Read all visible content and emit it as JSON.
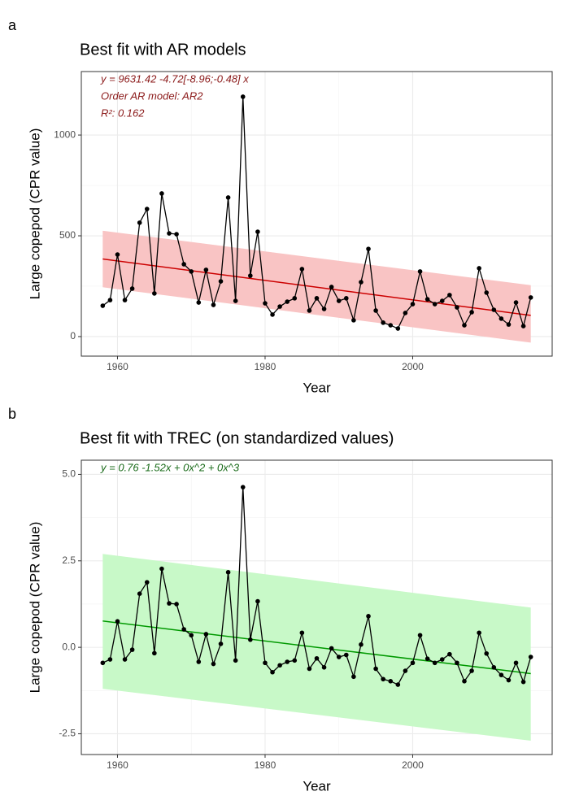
{
  "chart_data": [
    {
      "type": "line",
      "panel": "a",
      "title": "Best fit with AR models",
      "x_label": "Year",
      "y_label": "Large copepod (CPR value)",
      "annotations": [
        "y = 9631.42  -4.72[-8.96;-0.48] x",
        "Order AR model: AR2",
        "R²: 0.162"
      ],
      "annotation_color": "#8b1a1a",
      "xlim": [
        1955.1,
        2018.9
      ],
      "xticks": [
        1960,
        1980,
        2000
      ],
      "ylim": [
        -97,
        1315
      ],
      "yticks": [
        0,
        500,
        1000
      ],
      "grid": true,
      "minor_grid": true,
      "x": [
        1958,
        1959,
        1960,
        1961,
        1962,
        1963,
        1964,
        1965,
        1966,
        1967,
        1968,
        1969,
        1970,
        1971,
        1972,
        1973,
        1974,
        1975,
        1976,
        1977,
        1978,
        1979,
        1980,
        1981,
        1982,
        1983,
        1984,
        1985,
        1986,
        1987,
        1988,
        1989,
        1990,
        1991,
        1992,
        1993,
        1994,
        1995,
        1996,
        1997,
        1998,
        1999,
        2000,
        2001,
        2002,
        2003,
        2004,
        2005,
        2006,
        2007,
        2008,
        2009,
        2010,
        2011,
        2012,
        2013,
        2014,
        2015,
        2016
      ],
      "values": [
        153,
        181,
        407,
        181,
        238,
        565,
        633,
        214,
        710,
        512,
        508,
        359,
        323,
        169,
        331,
        157,
        274,
        690,
        177,
        1190,
        302,
        520,
        165,
        109,
        149,
        173,
        190,
        335,
        129,
        190,
        137,
        246,
        177,
        190,
        81,
        270,
        435,
        129,
        69,
        56,
        40,
        117,
        161,
        323,
        185,
        161,
        177,
        206,
        145,
        56,
        121,
        339,
        218,
        133,
        89,
        60,
        169,
        52,
        194
      ],
      "color": "#000000",
      "fit": {
        "x": [
          1958,
          2016
        ],
        "values": [
          385,
          105
        ],
        "color": "#cc0000"
      },
      "band": {
        "x": [
          1958,
          2016
        ],
        "lower": [
          245,
          -30
        ],
        "upper": [
          525,
          255
        ],
        "color": "#f9c4c4"
      }
    },
    {
      "type": "line",
      "panel": "b",
      "title": "Best fit with TREC (on standardized values)",
      "x_label": "Year",
      "y_label": "Large copepod (CPR value)",
      "annotations": [
        "y =  0.76  -1.52x  + 0x^2  + 0x^3"
      ],
      "annotation_color": "#1a6b1a",
      "xlim": [
        1955.1,
        2018.9
      ],
      "xticks": [
        1960,
        1980,
        2000
      ],
      "ylim": [
        -3.1,
        5.41
      ],
      "yticks": [
        {
          "value": 5,
          "label": "5.0"
        },
        2.5,
        {
          "value": 0,
          "label": "0.0"
        },
        -2.5
      ],
      "grid": true,
      "minor_grid": true,
      "x": [
        1958,
        1959,
        1960,
        1961,
        1962,
        1963,
        1964,
        1965,
        1966,
        1967,
        1968,
        1969,
        1970,
        1971,
        1972,
        1973,
        1974,
        1975,
        1976,
        1977,
        1978,
        1979,
        1980,
        1981,
        1982,
        1983,
        1984,
        1985,
        1986,
        1987,
        1988,
        1989,
        1990,
        1991,
        1992,
        1993,
        1994,
        1995,
        1996,
        1997,
        1998,
        1999,
        2000,
        2001,
        2002,
        2003,
        2004,
        2005,
        2006,
        2007,
        2008,
        2009,
        2010,
        2011,
        2012,
        2013,
        2014,
        2015,
        2016
      ],
      "values": [
        -0.45,
        -0.35,
        0.75,
        -0.35,
        -0.07,
        1.55,
        1.88,
        -0.17,
        2.27,
        1.27,
        1.25,
        0.52,
        0.35,
        -0.42,
        0.38,
        -0.48,
        0.1,
        2.17,
        -0.38,
        4.63,
        0.22,
        1.33,
        -0.45,
        -0.72,
        -0.52,
        -0.42,
        -0.38,
        0.42,
        -0.62,
        -0.32,
        -0.58,
        -0.03,
        -0.28,
        -0.22,
        -0.85,
        0.08,
        0.9,
        -0.62,
        -0.92,
        -0.98,
        -1.08,
        -0.68,
        -0.45,
        0.35,
        -0.33,
        -0.45,
        -0.35,
        -0.2,
        -0.45,
        -0.98,
        -0.68,
        0.42,
        -0.18,
        -0.58,
        -0.8,
        -0.95,
        -0.45,
        -1.0,
        -0.28
      ],
      "color": "#000000",
      "fit": {
        "x": [
          1958,
          2016
        ],
        "values": [
          0.76,
          -0.76
        ],
        "color": "#009900"
      },
      "band": {
        "x": [
          1958,
          2016
        ],
        "lower": [
          -1.2,
          -2.7
        ],
        "upper": [
          2.7,
          1.15
        ],
        "color": "#c8f9c8"
      }
    }
  ]
}
